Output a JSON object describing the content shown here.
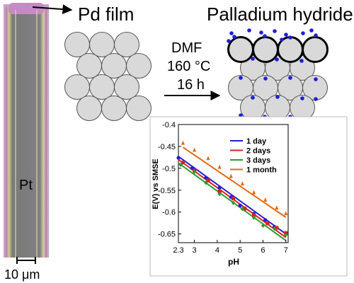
{
  "labels": {
    "pd_film": "Pd film",
    "product": "Palladium hydride",
    "cond_solvent": "DMF",
    "cond_temp": "160 °C",
    "cond_time": "16 h",
    "wire": "Pt",
    "scale_bar": "10 μm"
  },
  "colors": {
    "hydrogen_dots": "#1f1fd6",
    "sphere_fill": "#d9d9d9",
    "sphere_stroke": "#555555"
  },
  "chart_data": {
    "type": "scatter",
    "xlabel": "pH",
    "ylabel": "E(V) vs SMSE",
    "xlim": [
      2.3,
      7.1
    ],
    "ylim": [
      -0.67,
      -0.4
    ],
    "xticks": [
      "2.3",
      "3",
      "4",
      "5",
      "6",
      "7"
    ],
    "yticks": [
      "-0.4",
      "-0.45",
      "-0.5",
      "-0.55",
      "-0.6",
      "-0.65"
    ],
    "legend_position": "top-right",
    "series": [
      {
        "name": "1 day",
        "color": "#1f1fd6",
        "marker": "circle",
        "x": [
          2.3,
          2.9,
          3.5,
          4.1,
          4.6,
          5.0,
          5.6,
          6.1,
          6.5,
          7.0
        ],
        "y": [
          -0.476,
          -0.5,
          -0.522,
          -0.544,
          -0.566,
          -0.585,
          -0.604,
          -0.618,
          -0.634,
          -0.648
        ],
        "fit": [
          [
            2.3,
            -0.473
          ],
          [
            7.0,
            -0.65
          ]
        ]
      },
      {
        "name": "2 days",
        "color": "#d62020",
        "marker": "square",
        "x": [
          2.5,
          3.0,
          3.6,
          4.1,
          4.7,
          5.2,
          5.6,
          6.2,
          6.6,
          7.0
        ],
        "y": [
          -0.487,
          -0.505,
          -0.528,
          -0.553,
          -0.569,
          -0.592,
          -0.607,
          -0.626,
          -0.636,
          -0.648
        ],
        "fit": [
          [
            2.3,
            -0.48
          ],
          [
            7.0,
            -0.658
          ]
        ]
      },
      {
        "name": "3 days",
        "color": "#2f9a2f",
        "marker": "diamond",
        "x": [
          2.4,
          3.0,
          3.5,
          4.1,
          4.7,
          5.1,
          5.6,
          6.0,
          6.5,
          7.0
        ],
        "y": [
          -0.492,
          -0.508,
          -0.533,
          -0.559,
          -0.579,
          -0.593,
          -0.613,
          -0.631,
          -0.638,
          -0.652
        ],
        "fit": [
          [
            2.3,
            -0.488
          ],
          [
            7.0,
            -0.665
          ]
        ]
      },
      {
        "name": "1 month",
        "color": "#e06a1a",
        "marker": "triangle",
        "x": [
          2.5,
          3.0,
          3.6,
          4.1,
          4.6,
          5.1,
          5.6,
          6.1,
          6.6,
          7.0
        ],
        "y": [
          -0.442,
          -0.458,
          -0.477,
          -0.497,
          -0.518,
          -0.535,
          -0.555,
          -0.572,
          -0.59,
          -0.603
        ],
        "fit": [
          [
            2.5,
            -0.452
          ],
          [
            7.0,
            -0.612
          ]
        ]
      }
    ]
  }
}
